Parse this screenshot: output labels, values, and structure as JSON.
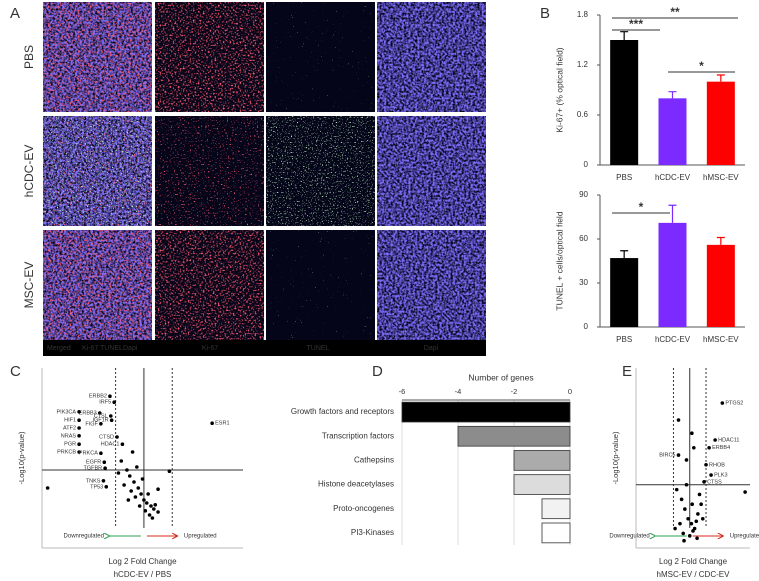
{
  "panel_labels": [
    "A",
    "B",
    "C",
    "D",
    "E"
  ],
  "panel_a": {
    "rows": [
      "PBS",
      "hCDC-EV",
      "MSC-EV"
    ],
    "legend": {
      "merged": "Merged",
      "ki67": "Ki-67",
      "tunel": "TUNEL",
      "dapi": "Dapi"
    },
    "columns": [
      "Ki-67",
      "TUNEL",
      "Dapi"
    ]
  },
  "chart_data": [
    {
      "type": "bar",
      "categories": [
        "PBS",
        "hCDC-EV",
        "hMSC-EV"
      ],
      "values": [
        1.5,
        0.8,
        1.0
      ],
      "errors": [
        0.1,
        0.08,
        0.08
      ],
      "colors": [
        "#000000",
        "#7b2bff",
        "#ff0000"
      ],
      "y_label": "Ki-67+ (% optical field)",
      "ylim": [
        0,
        1.8
      ],
      "yticks": [
        0,
        0.6,
        1.2,
        1.8
      ],
      "annotations": [
        "***",
        "**",
        "*"
      ]
    },
    {
      "type": "bar",
      "categories": [
        "PBS",
        "hCDC-EV",
        "hMSC-EV"
      ],
      "values": [
        47,
        71,
        56
      ],
      "errors": [
        5,
        12,
        5
      ],
      "colors": [
        "#000000",
        "#7b2bff",
        "#ff0000"
      ],
      "y_label": "TUNEL + cells/optical field",
      "ylim": [
        0,
        90
      ],
      "yticks": [
        0,
        30,
        60,
        90
      ],
      "annotations": [
        "*"
      ]
    },
    {
      "type": "scatter",
      "x_label": "Log 2 Fold Change",
      "subtitle": "hCDC-EV / PBS",
      "y_label": "-Log10(p-value)",
      "xlim": [
        -3.6,
        3.5
      ],
      "ylim": [
        0,
        3
      ],
      "reference_lines": {
        "x": [
          -1,
          0,
          1
        ],
        "y": [
          1.3
        ]
      },
      "annotations": [
        "Downregulated",
        "Upregulated"
      ],
      "marker_color": "#000000",
      "series": [
        {
          "color": "#2e9e4f",
          "x": [
            -1.2,
            -1.05,
            -1.56,
            -1.17,
            -1.14,
            -1.52,
            -0.95,
            -0.76,
            -2.29,
            -2.29,
            -2.29,
            -2.29,
            -2.29,
            -2.29,
            -1.52,
            -1.4,
            -1.37,
            -1.43,
            -1.33
          ],
          "values": [
            2.53,
            2.43,
            2.25,
            2.2,
            2.13,
            2.07,
            1.85,
            1.73,
            2.27,
            2.13,
            2.0,
            1.87,
            1.73,
            1.6,
            1.58,
            1.43,
            1.33,
            1.12,
            1.02
          ],
          "labels": [
            "ERBB2",
            "IRF5",
            "ERBB3",
            "CTSL",
            "IGF1R",
            "FIGF",
            "CTSD",
            "HDAC1",
            "PIK3CA",
            "HIF1",
            "ATF2",
            "NRAS",
            "PGR",
            "PRKCB",
            "PRKCA",
            "EGFR",
            "TGFBR",
            "TNKS",
            "TP53"
          ]
        },
        {
          "color": "#000000",
          "x": [
            -0.8,
            -0.6,
            -0.5,
            -0.35,
            -0.2,
            -0.1,
            0.0,
            0.1,
            0.25,
            0.35,
            0.5,
            -0.7,
            -0.45,
            -0.3,
            -0.15,
            0.05,
            0.2,
            0.4,
            -0.9,
            -0.55,
            -0.25,
            0.15,
            0.3,
            -3.4,
            0.5,
            0.9,
            -0.4,
            -0.05
          ],
          "values": [
            1.45,
            1.3,
            1.2,
            1.1,
            1.0,
            0.9,
            0.8,
            0.75,
            0.7,
            0.65,
            0.6,
            1.05,
            0.95,
            0.85,
            0.7,
            0.62,
            0.55,
            0.72,
            1.25,
            0.8,
            1.35,
            0.9,
            0.5,
            1.0,
            0.98,
            1.28,
            1.6,
            1.15
          ]
        },
        {
          "color": "#d42a1e",
          "x": [
            2.41
          ],
          "values": [
            2.08
          ],
          "labels": [
            "ESR1"
          ]
        }
      ]
    },
    {
      "type": "barh",
      "title": "Number of genes",
      "categories": [
        "Growth factors and receptors",
        "Transcription factors",
        "Cathepsins",
        "Histone deacetylases",
        "Proto-oncogenes",
        "PI3-Kinases"
      ],
      "values": [
        -6,
        -4,
        -2,
        -2,
        -1,
        -1
      ],
      "colors": [
        "#000000",
        "#8c8c8c",
        "#ababab",
        "#dcdcdc",
        "#f2f2f2",
        "#ffffff"
      ],
      "xlim": [
        -6,
        0
      ],
      "xticks": [
        -6,
        -4,
        -2,
        0
      ]
    },
    {
      "type": "scatter",
      "x_label": "Log 2 Fold Change",
      "subtitle": "hMSC-EV / CDC-EV",
      "y_label": "-Log10(p-value)",
      "xlim": [
        -3.3,
        3.7
      ],
      "ylim": [
        0,
        3.7
      ],
      "reference_lines": {
        "x": [
          -1,
          0,
          1
        ],
        "y": [
          1.3
        ]
      },
      "annotations": [
        "Downregulated",
        "Upregulated"
      ],
      "marker_color": "#000000",
      "series": [
        {
          "color": "#d42a1e",
          "x": [
            2.0,
            1.56,
            1.19,
            1.0,
            1.31,
            0.88
          ],
          "values": [
            2.98,
            2.22,
            2.06,
            1.71,
            1.5,
            1.36
          ],
          "labels": [
            "PTGS2",
            "HDAC11",
            "ERBB4",
            "RHOB",
            "PLK3",
            "CTSS"
          ]
        },
        {
          "color": "#2e9e4f",
          "x": [
            -0.69
          ],
          "values": [
            1.91
          ],
          "labels": [
            "BIRC5"
          ]
        },
        {
          "color": "#000000",
          "x": [
            -0.69,
            0.13,
            0.25,
            -0.2,
            -0.8,
            -0.5,
            -0.3,
            -0.1,
            0.1,
            0.3,
            0.5,
            0.7,
            -0.6,
            -0.4,
            0.0,
            0.2,
            0.4,
            0.6,
            -0.9,
            -0.2,
            0.15,
            0.8,
            3.4,
            -0.35,
            0.45
          ],
          "values": [
            2.63,
            2.36,
            2.06,
            1.81,
            1.2,
            1.0,
            0.8,
            0.6,
            0.5,
            0.4,
            0.7,
            0.9,
            0.5,
            0.3,
            0.25,
            0.35,
            0.55,
            1.1,
            0.4,
            1.3,
            0.9,
            0.6,
            1.15,
            0.15,
            0.2
          ]
        }
      ]
    }
  ]
}
